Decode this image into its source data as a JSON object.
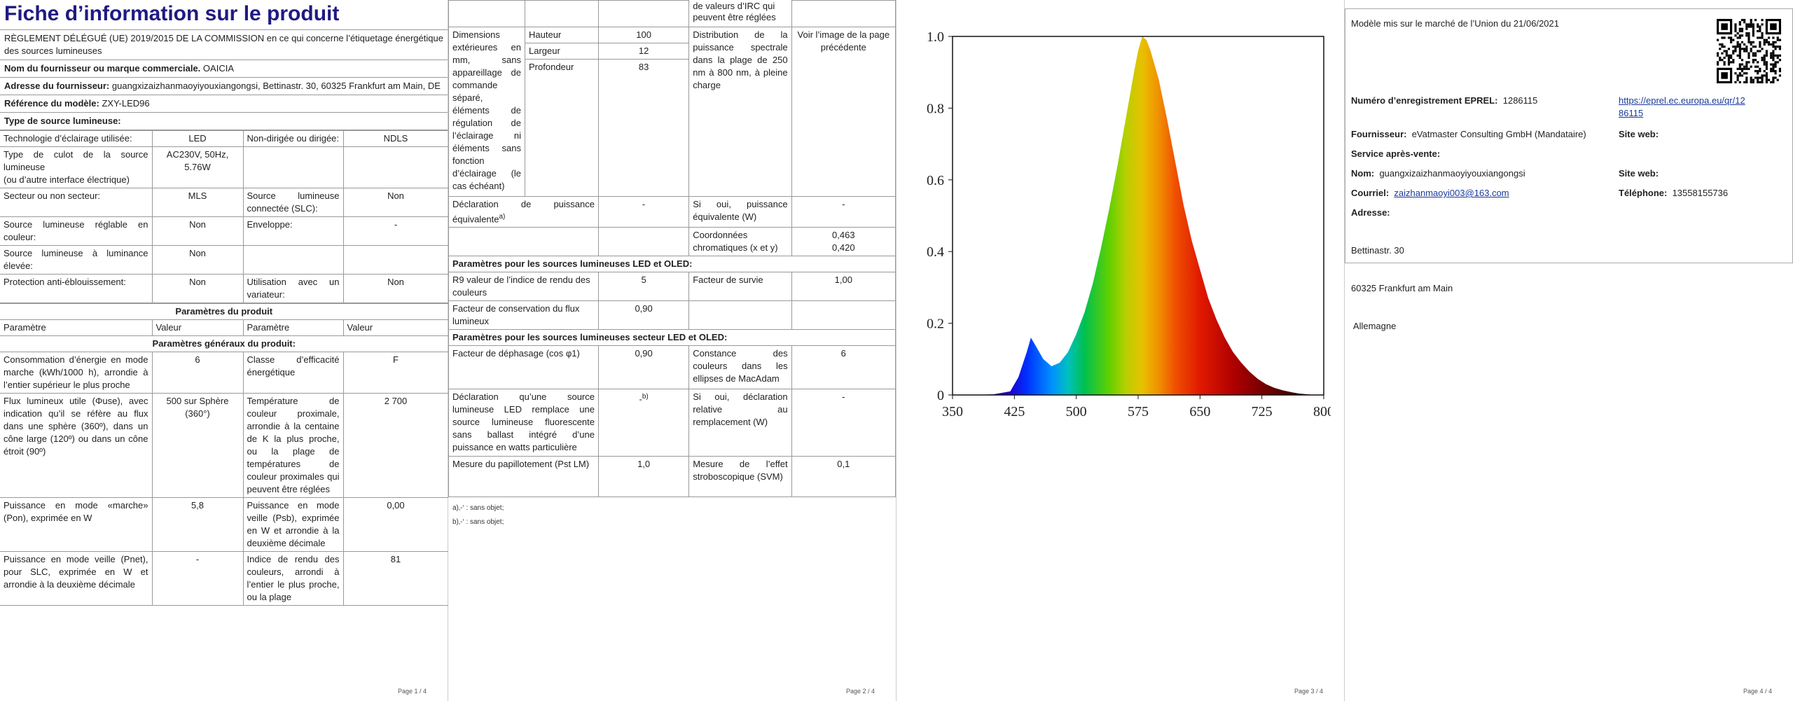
{
  "page1": {
    "title": "Fiche d’information sur le produit",
    "regulation": "RÈGLEMENT DÉLÉGUÉ (UE) 2019/2015 DE LA COMMISSION en ce qui concerne l’étiquetage énergétique des sources lumineuses",
    "supplier_brand_label": "Nom du fournisseur ou marque commerciale.",
    "supplier_brand_value": "OAICIA",
    "supplier_address_label": "Adresse du fournisseur:",
    "supplier_address_value": "guangxizaizhanmaoyiyouxiangongsi, Bettinastr. 30, 60325 Frankfurt am Main, DE",
    "model_ref_label": "Référence du modèle:",
    "model_ref_value": "ZXY-LED96",
    "source_type_label": "Type de source lumineuse:",
    "rows_a": [
      [
        "Technologie d’éclairage utilisée:",
        "LED",
        "Non-dirigée ou dirigée:",
        "NDLS"
      ],
      [
        "Type de culot de la source lumineuse\n(ou d’autre interface électrique)",
        "AC230V, 50Hz, 5.76W",
        "",
        ""
      ],
      [
        "Secteur ou non secteur:",
        "MLS",
        "Source lumineuse connectée (SLC):",
        "Non"
      ],
      [
        "Source lumineuse réglable en couleur:",
        "Non",
        "Enveloppe:",
        "-"
      ],
      [
        "Source lumineuse à luminance élevée:",
        "Non",
        "",
        ""
      ],
      [
        "Protection anti-éblouissement:",
        "Non",
        "Utilisation avec un variateur:",
        "Non"
      ]
    ],
    "params_heading": "Paramètres du produit",
    "col_headers": [
      "Paramètre",
      "Valeur",
      "Paramètre",
      "Valeur"
    ],
    "general_heading": "Paramètres généraux du produit:",
    "rows_b": [
      [
        "Consommation d’énergie en mode marche (kWh/1000 h), arrondie à l’entier supérieur le plus proche",
        "6",
        "Classe d’efficacité énergétique",
        "F"
      ],
      [
        "Flux lumineux utile (Φuse), avec indication qu’il se réfère au flux dans une sphère (360º), dans un cône large (120º) ou dans un cône étroit (90º)",
        "500 sur Sphère (360°)",
        "Température de couleur proximale, arrondie à la centaine de K la plus proche, ou la plage de températures de couleur proximales qui peuvent être réglées",
        "2 700"
      ],
      [
        "Puissance en mode «marche» (Pon), exprimée en W",
        "5,8",
        "Puissance en mode veille (Psb), exprimée en W et arrondie à la deuxième décimale",
        "0,00"
      ],
      [
        "Puissance en mode veille (Pnet), pour SLC, exprimée en W et arrondie à la deuxième décimale",
        "-",
        "Indice de rendu des couleurs, arrondi à l’entier le plus proche, ou la plage",
        "81"
      ]
    ],
    "page_number": "Page 1 / 4"
  },
  "page2": {
    "top_cont": "de valeurs d’IRC qui peuvent être réglées",
    "dims_label": "Dimensions extérieures en mm, sans appareillage de commande séparé, éléments de régulation de l’éclairage ni éléments sans fonction d’éclairage (le cas échéant)",
    "dims": [
      [
        "Hauteur",
        "100"
      ],
      [
        "Largeur",
        "12"
      ],
      [
        "Profondeur",
        "83"
      ]
    ],
    "spd_label": "Distribution de la puissance spectrale dans la plage de 250 nm à 800 nm, à pleine charge",
    "spd_value": "Voir l’image de la page précédente",
    "equiv_label": "Déclaration de puissance équivalente",
    "equiv_sup": "a)",
    "equiv_value": "-",
    "equiv_w_label": "Si oui, puissance équivalente (W)",
    "equiv_w_value": "-",
    "chroma_label": "Coordonnées chromatiques (x et y)",
    "chroma_x": "0,463",
    "chroma_y": "0,420",
    "led_heading": "Paramètres pour les sources lumineuses LED et OLED:",
    "r9_label": "R9 valeur de l’indice de rendu des couleurs",
    "r9_value": "5",
    "survival_label": "Facteur de survie",
    "survival_value": "1,00",
    "flux_cons_label": "Facteur de conservation du flux lumineux",
    "flux_cons_value": "0,90",
    "mains_heading": "Paramètres pour les sources lumineuses secteur LED et OLED:",
    "phase_label": "Facteur de déphasage (cos φ1)",
    "phase_value": "0,90",
    "macadam_label": "Constance des couleurs dans les ellipses de MacAdam",
    "macadam_value": "6",
    "fluo_label": "Déclaration qu’une source lumineuse LED remplace une source lumineuse fluorescente sans ballast intégré d’une puissance en watts particulière",
    "fluo_value": "-",
    "fluo_sup": "b)",
    "fluo_w_label": "Si oui, déclaration relative au remplacement (W)",
    "fluo_w_value": "-",
    "flicker_label": "Mesure du papillotement (Pst LM)",
    "flicker_value": "1,0",
    "strobo_label": "Mesure de l’effet stroboscopique (SVM)",
    "strobo_value": "0,1",
    "footnote_a": "a)‚-‘ : sans objet;",
    "footnote_b": "b)‚-‘ : sans objet;",
    "page_number": "Page 2 / 4"
  },
  "page3": {
    "page_number": "Page 3 / 4"
  },
  "chart_data": {
    "type": "area",
    "title": "",
    "xlabel": "",
    "ylabel": "",
    "xlim": [
      350,
      800
    ],
    "ylim": [
      0,
      1.0
    ],
    "x_ticks": [
      "350",
      "425",
      "500",
      "575",
      "650",
      "725",
      "800"
    ],
    "y_ticks": [
      "0",
      "0.2",
      "0.4",
      "0.6",
      "0.8",
      "1.0"
    ],
    "grid": false,
    "x": [
      380,
      400,
      420,
      430,
      440,
      445,
      450,
      460,
      470,
      480,
      490,
      500,
      510,
      520,
      530,
      540,
      550,
      560,
      570,
      575,
      580,
      585,
      590,
      600,
      610,
      620,
      630,
      640,
      650,
      660,
      670,
      680,
      690,
      700,
      710,
      720,
      730,
      740,
      750,
      760,
      770,
      780,
      790
    ],
    "values": [
      0.0,
      0.002,
      0.01,
      0.05,
      0.12,
      0.16,
      0.14,
      0.1,
      0.08,
      0.09,
      0.12,
      0.17,
      0.23,
      0.31,
      0.41,
      0.52,
      0.64,
      0.77,
      0.9,
      0.96,
      1.0,
      0.99,
      0.96,
      0.88,
      0.77,
      0.65,
      0.53,
      0.43,
      0.35,
      0.27,
      0.21,
      0.16,
      0.12,
      0.09,
      0.065,
      0.045,
      0.03,
      0.02,
      0.013,
      0.008,
      0.004,
      0.002,
      0.0
    ]
  },
  "page4": {
    "market_date": "Modèle mis sur le marché de l’Union du 21/06/2021",
    "eprel_label": "Numéro d’enregistrement EPREL:",
    "eprel_value": "1286115",
    "eprel_link_1": "https://eprel.ec.europa.eu/qr/12",
    "eprel_link_2": "86115",
    "supplier_label": "Fournisseur:",
    "supplier_value": "eVatmaster Consulting GmbH (Mandataire)",
    "website_label": "Site web:",
    "service_label": "Service après-vente:",
    "name_label": "Nom:",
    "name_value": "guangxizaizhanmaoyiyouxiangongsi",
    "website_label_2": "Site web:",
    "email_label": "Courriel:",
    "email_value": "zaizhanmaoyi003@163.com",
    "phone_label": "Téléphone:",
    "phone_value": "13558155736",
    "address_label": "Adresse:",
    "address_lines": [
      "Bettinastr. 30",
      "60325 Frankfurt am Main",
      " Allemagne"
    ],
    "page_number": "Page 4 / 4"
  }
}
